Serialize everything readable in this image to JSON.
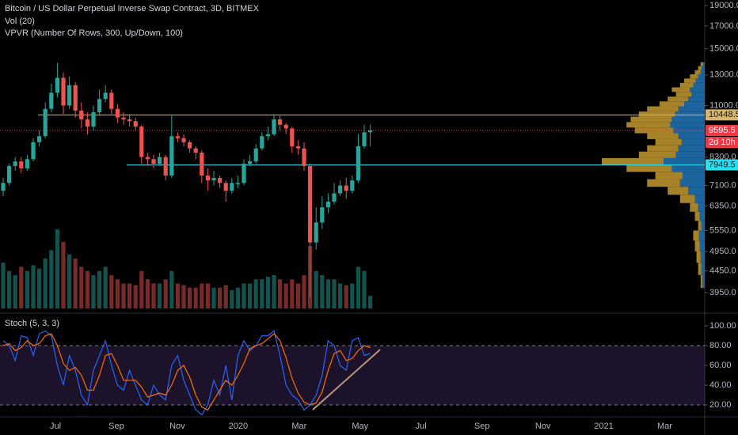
{
  "chart_data": [
    {
      "type": "candlestick",
      "title": "Bitcoin / US Dollar Perpetual Inverse Swap Contract, 3D, BITMEX",
      "indicators": [
        "Vol (20)",
        "VPVR (Number Of Rows, 300, Up/Down, 100)"
      ],
      "log_scale": true,
      "ylim": [
        3545,
        19600
      ],
      "yticks": [
        {
          "value": 19000,
          "label": "19000.0"
        },
        {
          "value": 17000,
          "label": "17000.0"
        },
        {
          "value": 15000,
          "label": "15000.0"
        },
        {
          "value": 13000,
          "label": "13000.0"
        },
        {
          "value": 11000,
          "label": "11000.0"
        },
        {
          "value": 8300,
          "label": "8300.0"
        },
        {
          "value": 7100,
          "label": "7100.0"
        },
        {
          "value": 6350,
          "label": "6350.0"
        },
        {
          "value": 5550,
          "label": "5550.0"
        },
        {
          "value": 4950,
          "label": "4950.0"
        },
        {
          "value": 4450,
          "label": "4450.0"
        },
        {
          "value": 3950,
          "label": "3950.0"
        }
      ],
      "up_color": "#26a69a",
      "down_color": "#ef5350",
      "candles": [
        [
          6900,
          7400,
          6700,
          7200
        ],
        [
          7200,
          8000,
          7100,
          7900
        ],
        [
          7900,
          8300,
          7700,
          8100
        ],
        [
          8100,
          8300,
          7600,
          7800
        ],
        [
          7800,
          8400,
          7700,
          8200
        ],
        [
          8200,
          9200,
          8100,
          9000
        ],
        [
          9000,
          9600,
          8800,
          9300
        ],
        [
          9300,
          11200,
          9200,
          10800
        ],
        [
          10800,
          12400,
          10600,
          11800
        ],
        [
          11800,
          13900,
          11500,
          12800
        ],
        [
          12800,
          13200,
          10500,
          11000
        ],
        [
          11000,
          12900,
          10800,
          12300
        ],
        [
          12300,
          12500,
          10300,
          10700
        ],
        [
          10700,
          11200,
          9700,
          10200
        ],
        [
          10200,
          10600,
          9400,
          9800
        ],
        [
          9800,
          11000,
          9600,
          10600
        ],
        [
          10600,
          12000,
          10400,
          11400
        ],
        [
          11400,
          12300,
          11200,
          11800
        ],
        [
          11800,
          12000,
          10500,
          10800
        ],
        [
          10800,
          11100,
          10000,
          10300
        ],
        [
          10300,
          10600,
          9900,
          10200
        ],
        [
          10200,
          10500,
          9800,
          10100
        ],
        [
          10100,
          10300,
          9600,
          9800
        ],
        [
          9800,
          9900,
          8000,
          8300
        ],
        [
          8300,
          8500,
          7900,
          8200
        ],
        [
          8200,
          8400,
          7800,
          8000
        ],
        [
          8000,
          8500,
          7900,
          8300
        ],
        [
          8300,
          8400,
          7300,
          7500
        ],
        [
          7500,
          10400,
          7400,
          9300
        ],
        [
          9300,
          9500,
          9000,
          9200
        ],
        [
          9200,
          9400,
          8800,
          9000
        ],
        [
          9000,
          9100,
          8500,
          8700
        ],
        [
          8700,
          8800,
          8200,
          8500
        ],
        [
          8500,
          8600,
          7200,
          7500
        ],
        [
          7500,
          7800,
          6900,
          7300
        ],
        [
          7300,
          7700,
          7100,
          7400
        ],
        [
          7400,
          7500,
          7000,
          7200
        ],
        [
          7200,
          7300,
          6500,
          6900
        ],
        [
          6900,
          7400,
          6800,
          7200
        ],
        [
          7150,
          7500,
          7000,
          7200
        ],
        [
          7200,
          8200,
          7100,
          8000
        ],
        [
          8000,
          8400,
          7900,
          8100
        ],
        [
          8100,
          8900,
          8000,
          8700
        ],
        [
          8700,
          9500,
          8600,
          9300
        ],
        [
          9300,
          9800,
          9100,
          9400
        ],
        [
          9400,
          10500,
          9300,
          10200
        ],
        [
          10200,
          10400,
          9600,
          9900
        ],
        [
          9900,
          10000,
          9400,
          9700
        ],
        [
          9700,
          9800,
          8500,
          8800
        ],
        [
          8800,
          9100,
          8400,
          8700
        ],
        [
          8700,
          9000,
          7700,
          7900
        ],
        [
          7900,
          8000,
          3850,
          5200
        ],
        [
          5200,
          6300,
          5000,
          5800
        ],
        [
          5800,
          6700,
          5600,
          6300
        ],
        [
          6300,
          6800,
          6100,
          6500
        ],
        [
          6500,
          7200,
          6400,
          6800
        ],
        [
          6800,
          7300,
          6700,
          7100
        ],
        [
          7100,
          7400,
          6600,
          6900
        ],
        [
          6900,
          7500,
          6800,
          7300
        ],
        [
          7300,
          9400,
          7200,
          8800
        ],
        [
          8800,
          9900,
          8700,
          9500
        ],
        [
          9500,
          9900,
          8800,
          9600
        ]
      ],
      "volume": [
        55,
        45,
        40,
        50,
        45,
        52,
        48,
        60,
        70,
        95,
        80,
        65,
        60,
        50,
        45,
        40,
        45,
        50,
        40,
        35,
        30,
        30,
        28,
        45,
        35,
        30,
        30,
        35,
        45,
        30,
        28,
        25,
        25,
        30,
        30,
        25,
        25,
        28,
        22,
        25,
        30,
        30,
        35,
        35,
        38,
        40,
        35,
        30,
        35,
        30,
        40,
        75,
        45,
        40,
        35,
        35,
        30,
        28,
        30,
        50,
        45,
        15
      ],
      "levels": [
        {
          "value": 10448.5,
          "label": "10448.5",
          "color": "#d7b56d",
          "text_color": "#131722"
        },
        {
          "value": 9595.5,
          "label": "9595.5",
          "color": "#f23645",
          "text_color": "#ffffff"
        },
        {
          "value": 7949.5,
          "label": "7949.5",
          "color": "#26e0f0",
          "text_color": "#131722"
        }
      ],
      "countdown": "2d 10h",
      "volume_profile": {
        "up_color": "#1f6fae",
        "down_color": "#b8902c",
        "prices": [
          4200,
          4500,
          4800,
          5100,
          5400,
          5700,
          6000,
          6300,
          6600,
          6900,
          7200,
          7500,
          7800,
          8100,
          8400,
          8700,
          9000,
          9300,
          9600,
          9900,
          10200,
          10500,
          10800,
          11100,
          11400,
          11700,
          12000,
          12300,
          12600,
          12900,
          13200,
          13500,
          13800
        ],
        "up": [
          3,
          4,
          5,
          6,
          7,
          4,
          6,
          8,
          12,
          20,
          30,
          27,
          40,
          50,
          35,
          32,
          28,
          32,
          38,
          42,
          40,
          36,
          32,
          25,
          20,
          16,
          18,
          14,
          11,
          8,
          5,
          4,
          2
        ],
        "down": [
          2,
          4,
          5,
          6,
          7,
          4,
          6,
          10,
          18,
          25,
          40,
          33,
          55,
          75,
          45,
          38,
          32,
          38,
          47,
          53,
          50,
          44,
          38,
          30,
          25,
          19,
          22,
          16,
          14,
          10,
          7,
          4,
          3
        ]
      },
      "x_labels": [
        "Jul",
        "Sep",
        "Nov",
        "2020",
        "Mar",
        "May",
        "Jul",
        "Sep",
        "Nov",
        "2021",
        "Mar"
      ]
    },
    {
      "type": "line",
      "title": "Stoch (5, 3, 3)",
      "ylim": [
        8,
        112
      ],
      "yticks": [
        {
          "value": 100,
          "label": "100.00"
        },
        {
          "value": 80,
          "label": "80.00"
        },
        {
          "value": 60,
          "label": "60.00"
        },
        {
          "value": 40,
          "label": "40.00"
        },
        {
          "value": 20,
          "label": "20.00"
        }
      ],
      "bands": [
        20,
        80
      ],
      "series": [
        {
          "color": "#2962ff",
          "values": [
            85,
            80,
            65,
            90,
            88,
            70,
            92,
            95,
            90,
            60,
            40,
            70,
            55,
            30,
            20,
            55,
            70,
            85,
            60,
            40,
            35,
            55,
            40,
            25,
            20,
            40,
            30,
            25,
            60,
            70,
            45,
            30,
            15,
            10,
            20,
            45,
            30,
            60,
            25,
            70,
            85,
            75,
            80,
            90,
            90,
            95,
            70,
            40,
            30,
            25,
            15,
            20,
            30,
            50,
            85,
            80,
            60,
            55,
            85,
            88,
            70,
            72
          ]
        },
        {
          "color": "#ff6d00",
          "values": [
            80,
            82,
            75,
            78,
            85,
            80,
            82,
            90,
            92,
            80,
            62,
            55,
            58,
            50,
            35,
            35,
            50,
            70,
            72,
            60,
            45,
            45,
            45,
            38,
            28,
            30,
            32,
            30,
            40,
            55,
            60,
            48,
            30,
            18,
            15,
            25,
            35,
            45,
            40,
            50,
            62,
            77,
            80,
            82,
            87,
            92,
            85,
            68,
            47,
            32,
            23,
            20,
            22,
            33,
            55,
            72,
            75,
            65,
            67,
            75,
            80,
            78
          ]
        }
      ]
    }
  ]
}
